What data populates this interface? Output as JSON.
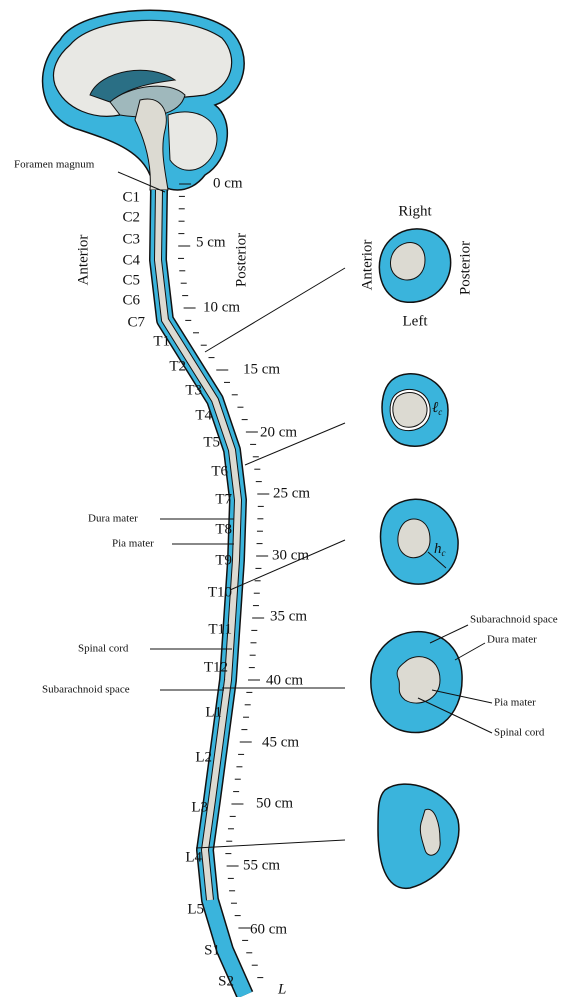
{
  "diagram": {
    "left_labels": [
      "Foramen magnum",
      "Dura mater",
      "Pia mater",
      "Spinal cord",
      "Subarachnoid space"
    ],
    "vertebrae": [
      "C1",
      "C2",
      "C3",
      "C4",
      "C5",
      "C6",
      "C7",
      "T1",
      "T2",
      "T3",
      "T4",
      "T5",
      "T6",
      "T7",
      "T8",
      "T9",
      "T10",
      "T11",
      "T12",
      "L1",
      "L2",
      "L3",
      "L4",
      "L5",
      "S1",
      "S2"
    ],
    "distance_labels": [
      "0 cm",
      "5 cm",
      "10 cm",
      "15 cm",
      "20 cm",
      "25 cm",
      "30 cm",
      "35 cm",
      "40 cm",
      "45 cm",
      "50 cm",
      "55 cm",
      "60 cm"
    ],
    "end_label": "L",
    "side_labels": {
      "anterior": "Anterior",
      "posterior": "Posterior"
    },
    "cross_sections": {
      "orientation": {
        "right": "Right",
        "left": "Left",
        "anterior": "Anterior",
        "posterior": "Posterior"
      },
      "symbols": [
        {
          "base": "ℓ",
          "sub": "c"
        },
        {
          "base": "h",
          "sub": "c"
        }
      ],
      "section_labels": [
        "Subarachnoid space",
        "Dura mater",
        "Pia mater",
        "Spinal cord"
      ]
    }
  }
}
